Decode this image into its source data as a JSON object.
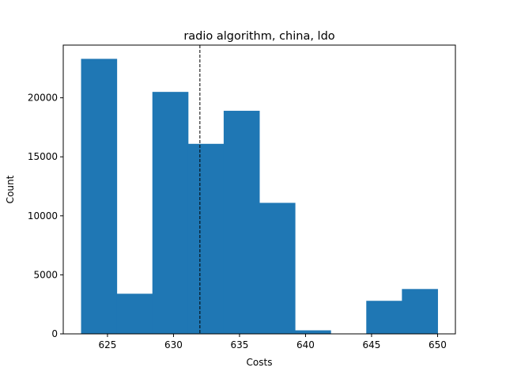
{
  "chart_data": {
    "type": "bar",
    "title": "radio algorithm, china, ldo",
    "xlabel": "Costs",
    "ylabel": "Count",
    "bin_edges": [
      623.0,
      625.7,
      628.4,
      631.1,
      633.8,
      636.5,
      639.2,
      641.9,
      644.6,
      647.3,
      650.0
    ],
    "values": [
      23300,
      3400,
      20500,
      16100,
      18900,
      11100,
      300,
      0,
      2800,
      3800
    ],
    "xlim": [
      621.65,
      651.35
    ],
    "ylim": [
      0,
      24465
    ],
    "xticks": [
      625,
      630,
      635,
      640,
      645,
      650
    ],
    "yticks": [
      0,
      5000,
      10000,
      15000,
      20000
    ],
    "reference_line": {
      "x": 632,
      "style": "dashed",
      "color": "#000000"
    },
    "bar_color": "#1f77b4",
    "grid": false,
    "legend": "none"
  }
}
